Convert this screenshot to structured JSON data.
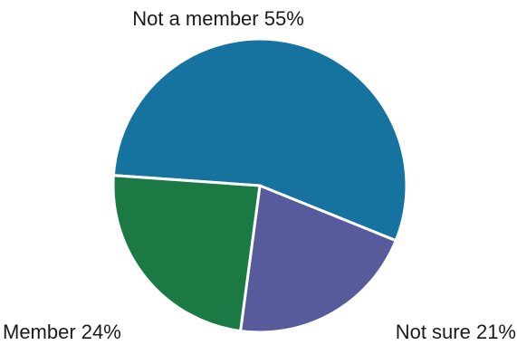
{
  "chart_data": {
    "type": "pie",
    "slices": [
      {
        "label": "Not a member 55%",
        "value": 55,
        "color": "#1673a0"
      },
      {
        "label": "Not sure 21%",
        "value": 21,
        "color": "#575b9b"
      },
      {
        "label": "Member 24%",
        "value": 24,
        "color": "#1b7a44"
      }
    ]
  }
}
